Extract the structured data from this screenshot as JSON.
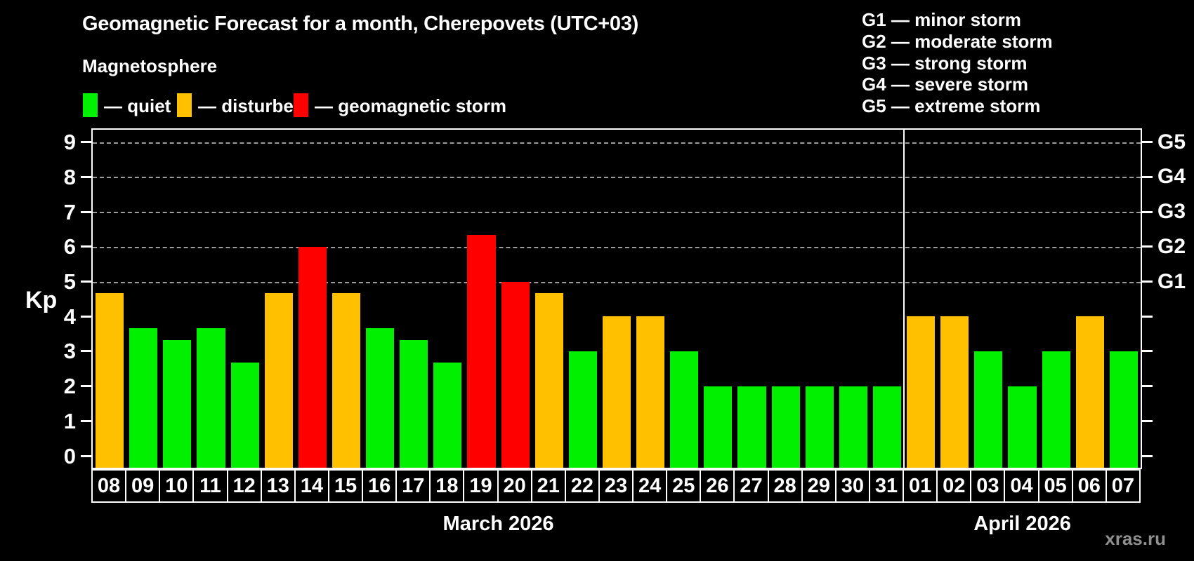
{
  "title": "Geomagnetic Forecast for a month, Cherepovets (UTC+03)",
  "watermark": "xras.ru",
  "legend": {
    "title": "Magnetosphere",
    "items": [
      {
        "key": "quiet",
        "label": "— quiet",
        "color": "#00f000"
      },
      {
        "key": "disturbed",
        "label": "— disturbed",
        "color": "#ffc000"
      },
      {
        "key": "storm",
        "label": "— geomagnetic storm",
        "color": "#ff0000"
      }
    ]
  },
  "g_legend": [
    "G1 — minor storm",
    "G2 — moderate storm",
    "G3 — strong storm",
    "G4 — severe storm",
    "G5 — extreme storm"
  ],
  "chart_data": {
    "type": "bar",
    "title": "Geomagnetic Forecast for a month, Cherepovets (UTC+03)",
    "ylabel": "Kp",
    "ylim": [
      0,
      9
    ],
    "y_ticks": [
      0,
      1,
      2,
      3,
      4,
      5,
      6,
      7,
      8,
      9
    ],
    "grid": "dashed horizontal gridlines at Kp 5..9 only",
    "legend_position": "top",
    "right_axis": [
      {
        "kp": 5,
        "label": "G1"
      },
      {
        "kp": 6,
        "label": "G2"
      },
      {
        "kp": 7,
        "label": "G3"
      },
      {
        "kp": 8,
        "label": "G4"
      },
      {
        "kp": 9,
        "label": "G5"
      }
    ],
    "months": [
      {
        "label": "March 2026",
        "days": [
          {
            "day": "08",
            "kp": 4.67,
            "status": "disturbed"
          },
          {
            "day": "09",
            "kp": 3.67,
            "status": "quiet"
          },
          {
            "day": "10",
            "kp": 3.33,
            "status": "quiet"
          },
          {
            "day": "11",
            "kp": 3.67,
            "status": "quiet"
          },
          {
            "day": "12",
            "kp": 2.67,
            "status": "quiet"
          },
          {
            "day": "13",
            "kp": 4.67,
            "status": "disturbed"
          },
          {
            "day": "14",
            "kp": 6.0,
            "status": "storm"
          },
          {
            "day": "15",
            "kp": 4.67,
            "status": "disturbed"
          },
          {
            "day": "16",
            "kp": 3.67,
            "status": "quiet"
          },
          {
            "day": "17",
            "kp": 3.33,
            "status": "quiet"
          },
          {
            "day": "18",
            "kp": 2.67,
            "status": "quiet"
          },
          {
            "day": "19",
            "kp": 6.33,
            "status": "storm"
          },
          {
            "day": "20",
            "kp": 5.0,
            "status": "storm"
          },
          {
            "day": "21",
            "kp": 4.67,
            "status": "disturbed"
          },
          {
            "day": "22",
            "kp": 3.0,
            "status": "quiet"
          },
          {
            "day": "23",
            "kp": 4.0,
            "status": "disturbed"
          },
          {
            "day": "24",
            "kp": 4.0,
            "status": "disturbed"
          },
          {
            "day": "25",
            "kp": 3.0,
            "status": "quiet"
          },
          {
            "day": "26",
            "kp": 2.0,
            "status": "quiet"
          },
          {
            "day": "27",
            "kp": 2.0,
            "status": "quiet"
          },
          {
            "day": "28",
            "kp": 2.0,
            "status": "quiet"
          },
          {
            "day": "29",
            "kp": 2.0,
            "status": "quiet"
          },
          {
            "day": "30",
            "kp": 2.0,
            "status": "quiet"
          },
          {
            "day": "31",
            "kp": 2.0,
            "status": "quiet"
          }
        ]
      },
      {
        "label": "April 2026",
        "days": [
          {
            "day": "01",
            "kp": 4.0,
            "status": "disturbed"
          },
          {
            "day": "02",
            "kp": 4.0,
            "status": "disturbed"
          },
          {
            "day": "03",
            "kp": 3.0,
            "status": "quiet"
          },
          {
            "day": "04",
            "kp": 2.0,
            "status": "quiet"
          },
          {
            "day": "05",
            "kp": 3.0,
            "status": "quiet"
          },
          {
            "day": "06",
            "kp": 4.0,
            "status": "disturbed"
          },
          {
            "day": "07",
            "kp": 3.0,
            "status": "quiet"
          }
        ]
      }
    ]
  }
}
